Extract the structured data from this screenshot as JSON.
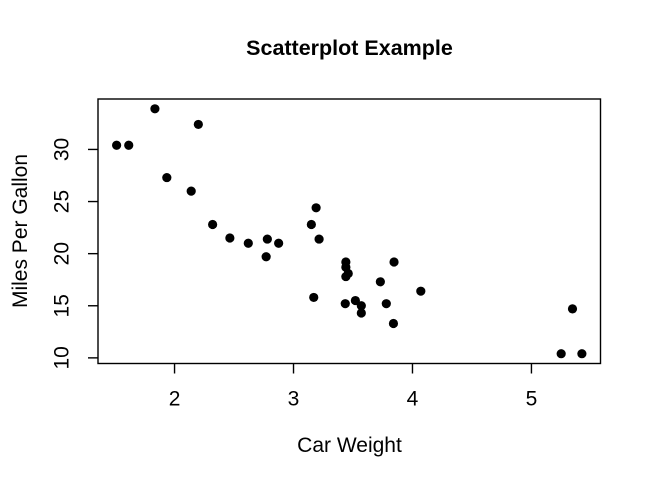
{
  "figure": {
    "background_color": "#ffffff"
  },
  "chart_data": {
    "type": "scatter",
    "title": "Scatterplot Example",
    "xlabel": "Car Weight",
    "ylabel": "Miles Per Gallon",
    "xlim": [
      1.35656,
      5.58044
    ],
    "ylim": [
      9.46,
      34.84
    ],
    "x_ticks": [
      2,
      3,
      4,
      5
    ],
    "y_ticks": [
      10,
      15,
      20,
      25,
      30
    ],
    "grid": false,
    "legend": null,
    "point_style": {
      "shape": "filled-circle",
      "color": "#000000",
      "radius_px": 4.6
    },
    "axis_color": "#000000",
    "text_color": "#000000",
    "points": [
      {
        "x": 2.62,
        "y": 21.0
      },
      {
        "x": 2.875,
        "y": 21.0
      },
      {
        "x": 2.32,
        "y": 22.8
      },
      {
        "x": 3.215,
        "y": 21.4
      },
      {
        "x": 3.44,
        "y": 18.7
      },
      {
        "x": 3.46,
        "y": 18.1
      },
      {
        "x": 3.57,
        "y": 14.3
      },
      {
        "x": 3.19,
        "y": 24.4
      },
      {
        "x": 3.15,
        "y": 22.8
      },
      {
        "x": 3.44,
        "y": 19.2
      },
      {
        "x": 3.44,
        "y": 17.8
      },
      {
        "x": 4.07,
        "y": 16.4
      },
      {
        "x": 3.73,
        "y": 17.3
      },
      {
        "x": 3.78,
        "y": 15.2
      },
      {
        "x": 5.25,
        "y": 10.4
      },
      {
        "x": 5.424,
        "y": 10.4
      },
      {
        "x": 5.345,
        "y": 14.7
      },
      {
        "x": 2.2,
        "y": 32.4
      },
      {
        "x": 1.615,
        "y": 30.4
      },
      {
        "x": 1.835,
        "y": 33.9
      },
      {
        "x": 2.465,
        "y": 21.5
      },
      {
        "x": 3.52,
        "y": 15.5
      },
      {
        "x": 3.435,
        "y": 15.2
      },
      {
        "x": 3.84,
        "y": 13.3
      },
      {
        "x": 3.845,
        "y": 19.2
      },
      {
        "x": 1.935,
        "y": 27.3
      },
      {
        "x": 2.14,
        "y": 26.0
      },
      {
        "x": 1.513,
        "y": 30.4
      },
      {
        "x": 3.17,
        "y": 15.8
      },
      {
        "x": 2.77,
        "y": 19.7
      },
      {
        "x": 3.57,
        "y": 15.0
      },
      {
        "x": 2.78,
        "y": 21.4
      }
    ]
  }
}
